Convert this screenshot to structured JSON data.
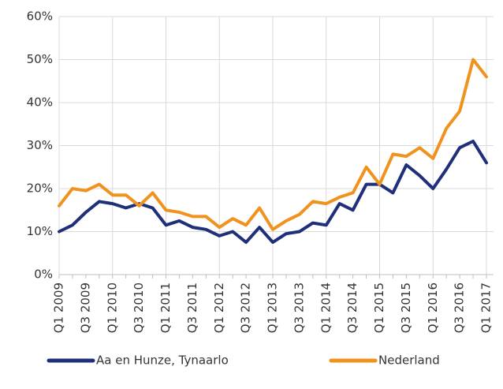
{
  "chart_data": {
    "type": "line",
    "categories": [
      "Q1 2009",
      null,
      "Q3 2009",
      null,
      "Q1 2010",
      null,
      "Q3 2010",
      null,
      "Q1 2011",
      null,
      "Q3 2011",
      null,
      "Q1 2012",
      null,
      "Q3 2012",
      null,
      "Q1 2013",
      null,
      "Q3 2013",
      null,
      "Q1 2014",
      null,
      "Q3 2014",
      null,
      "Q1 2015",
      null,
      "Q3 2015",
      null,
      "Q1 2016",
      null,
      "Q3 2016",
      null,
      "Q1 2017"
    ],
    "series": [
      {
        "name": "Aa en Hunze, Tynaarlo",
        "color": "#1f2f7a",
        "values": [
          10,
          11.5,
          14.5,
          17,
          16.5,
          15.5,
          16.5,
          15.5,
          11.5,
          12.5,
          11,
          10.5,
          9,
          10,
          7.5,
          11,
          7.5,
          9.5,
          10,
          12,
          11.5,
          16.5,
          15,
          21,
          21,
          19,
          25.5,
          23,
          20,
          24.5,
          29.5,
          31,
          26
        ]
      },
      {
        "name": "Nederland",
        "color": "#f0931e",
        "values": [
          16,
          20,
          19.5,
          21,
          18.5,
          18.5,
          16,
          19,
          15,
          14.5,
          13.5,
          13.5,
          11,
          13,
          11.5,
          15.5,
          10.5,
          12.5,
          14,
          17,
          16.5,
          18,
          19,
          25,
          21,
          28,
          27.5,
          29.5,
          27,
          34,
          38,
          50,
          46
        ]
      }
    ],
    "ylim": [
      0,
      60
    ],
    "yticks": [
      {
        "value": 0,
        "label": "0%"
      },
      {
        "value": 10,
        "label": "10%"
      },
      {
        "value": 20,
        "label": "20%"
      },
      {
        "value": 30,
        "label": "30%"
      },
      {
        "value": 40,
        "label": "40%"
      },
      {
        "value": 50,
        "label": "50%"
      },
      {
        "value": 60,
        "label": "60%"
      }
    ],
    "grid": true,
    "legend": "bottom"
  }
}
